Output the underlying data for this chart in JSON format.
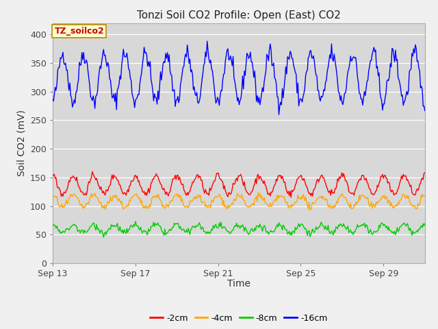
{
  "title": "Tonzi Soil CO2 Profile: Open (East) CO2",
  "ylabel": "Soil CO2 (mV)",
  "xlabel": "Time",
  "x_tick_labels": [
    "Sep 13",
    "Sep 17",
    "Sep 21",
    "Sep 25",
    "Sep 29"
  ],
  "ylim": [
    0,
    420
  ],
  "yticks": [
    0,
    50,
    100,
    150,
    200,
    250,
    300,
    350,
    400
  ],
  "colors": {
    "neg2cm": "#ff0000",
    "neg4cm": "#ffa500",
    "neg8cm": "#00cc00",
    "neg16cm": "#0000ff"
  },
  "legend_labels": [
    "-2cm",
    "-4cm",
    "-8cm",
    "-16cm"
  ],
  "annotation_label": "TZ_soilco2",
  "annotation_color": "#cc0000",
  "annotation_bg": "#ffffcc",
  "fig_bg": "#f0f0f0",
  "plot_bg": "#d8d8d8",
  "title_fontsize": 11,
  "axis_fontsize": 10,
  "tick_fontsize": 9,
  "n_days": 18,
  "hours_per_day": 24,
  "seed": 42
}
